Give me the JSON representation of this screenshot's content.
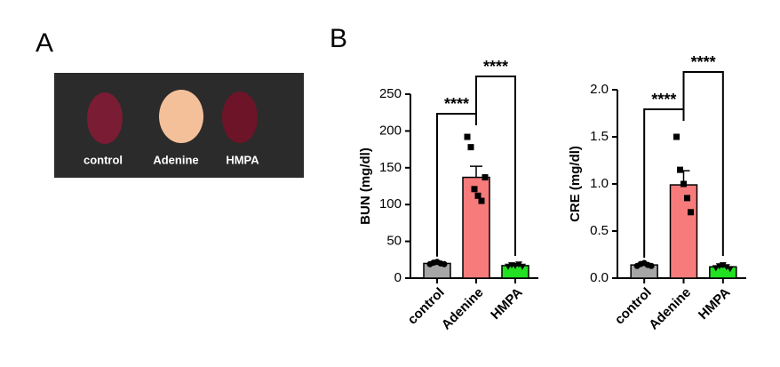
{
  "panels": {
    "a": "A",
    "b": "B"
  },
  "photo": {
    "labels": [
      "control",
      "Adenine",
      "HMPA"
    ]
  },
  "chart_data": [
    {
      "type": "bar",
      "y_label": "BUN (mg/dl)",
      "categories": [
        "control",
        "Adenine",
        "HMPA"
      ],
      "values": [
        20,
        137,
        17
      ],
      "errors": [
        1.5,
        15,
        1
      ],
      "colors": [
        "#a6a6a6",
        "#f77b7b",
        "#22e022"
      ],
      "points": [
        [
          19,
          21,
          22,
          20,
          19
        ],
        [
          192,
          178,
          121,
          112,
          105,
          137
        ],
        [
          16,
          18,
          17,
          19,
          16
        ]
      ],
      "ylim": [
        0,
        250
      ],
      "yticks": [
        0,
        50,
        100,
        150,
        200,
        250
      ],
      "comparisons": [
        {
          "label": "****",
          "pair": [
            "control",
            "Adenine"
          ]
        },
        {
          "label": "****",
          "pair": [
            "Adenine",
            "HMPA"
          ]
        }
      ]
    },
    {
      "type": "bar",
      "y_label": "CRE (mg/dl)",
      "categories": [
        "control",
        "Adenine",
        "HMPA"
      ],
      "values": [
        0.14,
        0.99,
        0.12
      ],
      "errors": [
        0.01,
        0.15,
        0.01
      ],
      "colors": [
        "#a6a6a6",
        "#f77b7b",
        "#22e022"
      ],
      "points": [
        [
          0.13,
          0.15,
          0.16,
          0.14,
          0.13
        ],
        [
          1.5,
          1.15,
          1.0,
          0.85,
          0.7
        ],
        [
          0.11,
          0.13,
          0.14,
          0.12,
          0.1
        ]
      ],
      "ylim": [
        0,
        2.0
      ],
      "yticks": [
        {
          "value": 0,
          "label": "0.0"
        },
        0.5,
        {
          "value": 1,
          "label": "1.0"
        },
        1.5,
        {
          "value": 2,
          "label": "2.0"
        }
      ],
      "comparisons": [
        {
          "label": "****",
          "pair": [
            "control",
            "Adenine"
          ]
        },
        {
          "label": "****",
          "pair": [
            "Adenine",
            "HMPA"
          ]
        }
      ]
    }
  ]
}
